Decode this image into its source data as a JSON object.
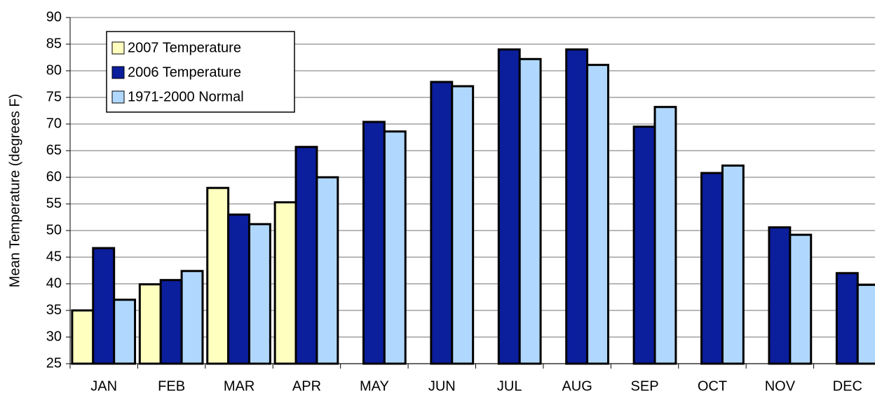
{
  "chart_data": {
    "type": "bar",
    "y_label": "Mean Temperature (degrees F)",
    "categories": [
      "JAN",
      "FEB",
      "MAR",
      "APR",
      "MAY",
      "JUN",
      "JUL",
      "AUG",
      "SEP",
      "OCT",
      "NOV",
      "DEC"
    ],
    "series": [
      {
        "name": "2007 Temperature",
        "color": "#ffffc0",
        "values": [
          35,
          39.9,
          58,
          55.3,
          null,
          null,
          null,
          null,
          null,
          null,
          null,
          null
        ]
      },
      {
        "name": "2006 Temperature",
        "color": "#0b1e9c",
        "values": [
          46.7,
          40.7,
          53,
          65.7,
          70.4,
          77.9,
          84,
          84,
          69.5,
          60.8,
          50.6,
          42
        ]
      },
      {
        "name": "1971-2000 Normal",
        "color": "#b0d8ff",
        "values": [
          37,
          42.4,
          51.2,
          60,
          68.6,
          77.1,
          82.2,
          81.1,
          73.2,
          62.2,
          49.2,
          39.8
        ]
      }
    ],
    "ylim": [
      25,
      90
    ],
    "yticks": [
      25,
      30,
      35,
      40,
      45,
      50,
      55,
      60,
      65,
      70,
      75,
      80,
      85,
      90
    ],
    "grid": true,
    "legend": "upper left"
  }
}
